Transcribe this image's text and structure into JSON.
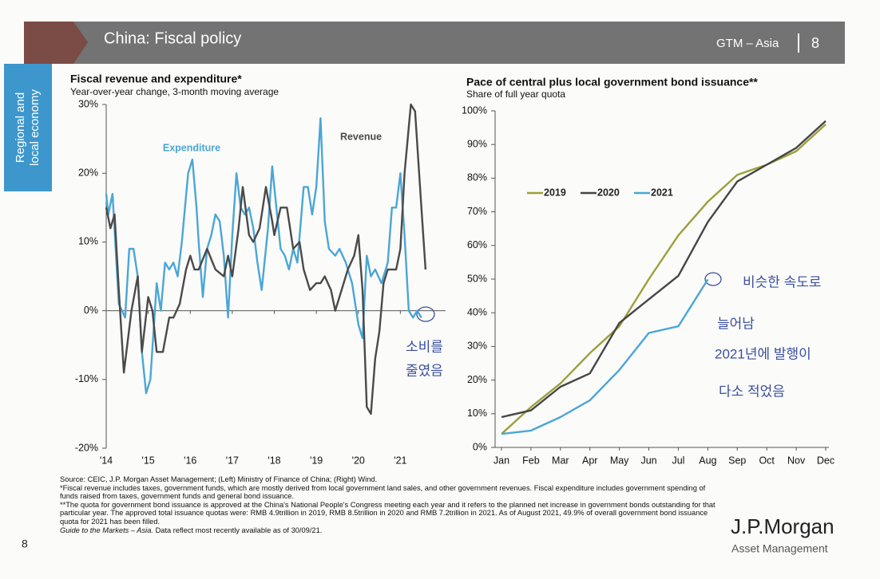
{
  "header": {
    "title": "China: Fiscal policy",
    "section": "GTM – Asia",
    "page": "8"
  },
  "sidebar": [
    "Regional and",
    "local economy"
  ],
  "chart_data": [
    {
      "type": "line",
      "title": "Fiscal revenue and expenditure*",
      "subtitle": "Year-over-year change, 3-month moving average",
      "xlim": [
        2014,
        2022
      ],
      "xticks": [
        {
          "value": 2014,
          "label": "'14"
        },
        {
          "value": 2015,
          "label": "'15"
        },
        {
          "value": 2016,
          "label": "'16"
        },
        {
          "value": 2017,
          "label": "'17"
        },
        {
          "value": 2018,
          "label": "'18"
        },
        {
          "value": 2019,
          "label": "'19"
        },
        {
          "value": 2020,
          "label": "'20"
        },
        {
          "value": 2021,
          "label": "'21"
        }
      ],
      "ylim": [
        -20,
        30
      ],
      "yticks": [
        {
          "value": -20,
          "label": "-20%"
        },
        {
          "value": -10,
          "label": "-10%"
        },
        {
          "value": 0,
          "label": "0%"
        },
        {
          "value": 10,
          "label": "10%"
        },
        {
          "value": 20,
          "label": "20%"
        },
        {
          "value": 30,
          "label": "30%"
        }
      ],
      "series": [
        {
          "name": "Expenditure",
          "color": "#4ba6d6",
          "x": [
            2014.0,
            2014.05,
            2014.15,
            2014.3,
            2014.45,
            2014.55,
            2014.65,
            2014.75,
            2014.85,
            2014.95,
            2015.05,
            2015.2,
            2015.3,
            2015.4,
            2015.5,
            2015.6,
            2015.7,
            2015.8,
            2015.95,
            2016.05,
            2016.15,
            2016.2,
            2016.3,
            2016.4,
            2016.5,
            2016.6,
            2016.7,
            2016.8,
            2016.9,
            2017.0,
            2017.1,
            2017.2,
            2017.3,
            2017.4,
            2017.5,
            2017.6,
            2017.7,
            2017.85,
            2017.95,
            2018.05,
            2018.15,
            2018.25,
            2018.35,
            2018.45,
            2018.55,
            2018.7,
            2018.8,
            2018.9,
            2019.0,
            2019.1,
            2019.2,
            2019.3,
            2019.45,
            2019.55,
            2019.7,
            2019.85,
            2020.0,
            2020.1,
            2020.2,
            2020.3,
            2020.4,
            2020.55,
            2020.7,
            2020.8,
            2020.9,
            2021.0,
            2021.1,
            2021.2,
            2021.3,
            2021.4,
            2021.5
          ],
          "values": [
            17,
            14,
            17,
            1,
            -1,
            9,
            9,
            5,
            -6,
            -12,
            -10,
            4,
            0,
            7,
            6,
            7,
            5,
            10,
            20,
            22,
            15,
            10,
            2,
            9,
            11,
            14,
            13,
            8,
            -1,
            11,
            20,
            15,
            14,
            15,
            12,
            7,
            3,
            12,
            21,
            15,
            9,
            8,
            6,
            9,
            7,
            18,
            18,
            14,
            18,
            28,
            13,
            9,
            8,
            9,
            7,
            4,
            -2,
            -4,
            8,
            5,
            6,
            4,
            7,
            15,
            15,
            20,
            11,
            0,
            -1,
            0,
            -1
          ]
        },
        {
          "name": "Revenue",
          "color": "#4a4a4a",
          "x": [
            2014.0,
            2014.1,
            2014.2,
            2014.3,
            2014.42,
            2014.6,
            2014.75,
            2014.85,
            2015.0,
            2015.1,
            2015.2,
            2015.35,
            2015.5,
            2015.6,
            2015.75,
            2015.9,
            2016.0,
            2016.1,
            2016.2,
            2016.4,
            2016.6,
            2016.8,
            2016.9,
            2017.0,
            2017.15,
            2017.25,
            2017.4,
            2017.5,
            2017.65,
            2017.8,
            2017.95,
            2018.0,
            2018.15,
            2018.3,
            2018.45,
            2018.6,
            2018.7,
            2018.85,
            2019.0,
            2019.1,
            2019.2,
            2019.35,
            2019.45,
            2019.55,
            2019.75,
            2019.9,
            2020.0,
            2020.1,
            2020.2,
            2020.3,
            2020.4,
            2020.5,
            2020.6,
            2020.7,
            2020.8,
            2020.9,
            2021.0,
            2021.1,
            2021.25,
            2021.35,
            2021.5,
            2021.6
          ],
          "values": [
            15,
            12,
            14,
            3,
            -9,
            0,
            5,
            -6,
            2,
            0,
            -6,
            -6,
            -1,
            -1,
            1,
            6,
            8,
            6,
            6,
            9,
            6,
            5,
            8,
            5,
            12,
            18,
            11,
            10,
            12,
            18,
            13,
            11,
            15,
            15,
            9,
            10,
            6,
            3,
            4,
            4,
            5,
            3,
            0,
            2,
            6,
            8,
            11,
            3,
            -14,
            -15,
            -7,
            -3,
            4,
            6,
            6,
            6,
            9,
            20,
            30,
            29,
            15,
            6
          ]
        }
      ],
      "annotations": [
        "소비를",
        "줄였음"
      ]
    },
    {
      "type": "line",
      "title": "Pace of central plus local government bond issuance**",
      "subtitle": "Share of full year quota",
      "categories": [
        "Jan",
        "Feb",
        "Mar",
        "Apr",
        "May",
        "Jun",
        "Jul",
        "Aug",
        "Sep",
        "Oct",
        "Nov",
        "Dec"
      ],
      "ylim": [
        0,
        100
      ],
      "yticks": [
        {
          "value": 0,
          "label": "0%"
        },
        {
          "value": 10,
          "label": "10%"
        },
        {
          "value": 20,
          "label": "20%"
        },
        {
          "value": 30,
          "label": "30%"
        },
        {
          "value": 40,
          "label": "40%"
        },
        {
          "value": 50,
          "label": "50%"
        },
        {
          "value": 60,
          "label": "60%"
        },
        {
          "value": 70,
          "label": "70%"
        },
        {
          "value": 80,
          "label": "80%"
        },
        {
          "value": 90,
          "label": "90%"
        },
        {
          "value": 100,
          "label": "100%"
        }
      ],
      "legend": "top-left",
      "series": [
        {
          "name": "2019",
          "color": "#9ca03a",
          "values": [
            4,
            12,
            19,
            28,
            36,
            50,
            63,
            73,
            81,
            84,
            88,
            96
          ]
        },
        {
          "name": "2020",
          "color": "#454545",
          "values": [
            9,
            11,
            18,
            22,
            37,
            44,
            51,
            67,
            79,
            84,
            89,
            97
          ]
        },
        {
          "name": "2021",
          "color": "#4ba6d6",
          "values": [
            4,
            5,
            9,
            14,
            23,
            34,
            36,
            49.9,
            null,
            null,
            null,
            null
          ]
        }
      ],
      "annotations": [
        "비슷한 속도로",
        "늘어남",
        "2021년에 발행이",
        "다소 적었음"
      ]
    }
  ],
  "footnotes": [
    "Source: CEIC, J.P. Morgan Asset Management; (Left) Ministry of Finance of China; (Right) Wind.",
    "*Fiscal revenue includes taxes, government funds, which are mostly derived from local government land sales, and other government revenues. Fiscal expenditure includes government spending of funds raised from taxes, government funds and general bond issuance.",
    "**The quota for government bond issuance is approved at the China's National People's Congress meeting each year and it refers to the planned net increase in government bonds outstanding for that particular year. The approved total issuance quotas were: RMB 4.9trillion in 2019, RMB 8.5trillion in 2020 and RMB 7.2trillion in 2021. As of August 2021, 49.9% of overall government bond issuance quota for 2021 has been filled."
  ],
  "guide": {
    "name": "Guide to the Markets – Asia.",
    "note": "Data reflect most recently available as of 30/09/21."
  },
  "logo": {
    "brand": "J.P.Morgan",
    "sub": "Asset Management"
  },
  "page_number": "8"
}
